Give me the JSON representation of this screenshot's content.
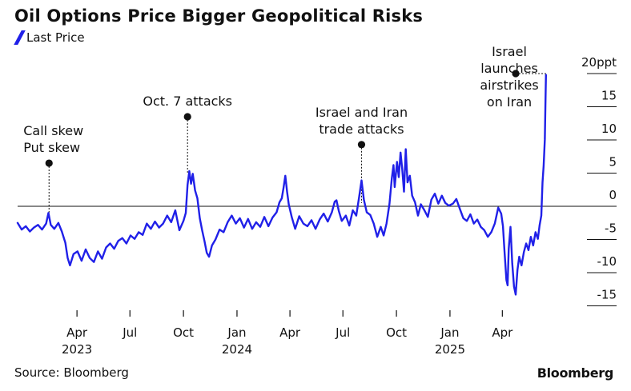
{
  "title": "Oil Options Price Bigger Geopolitical Risks",
  "legend": {
    "label": "Last Price"
  },
  "colors": {
    "series": "#2020e8",
    "text": "#111111",
    "zero_line": "#111111"
  },
  "source": "Source: Bloomberg",
  "brand": "Bloomberg",
  "chart_data": {
    "type": "line",
    "title": "Oil Options Price Bigger Geopolitical Risks",
    "xlabel": "",
    "ylabel": "",
    "ylim": [
      -17,
      22
    ],
    "y_ticks": [
      {
        "value": 20,
        "label": "20ppt"
      },
      {
        "value": 15,
        "label": "15"
      },
      {
        "value": 10,
        "label": "10"
      },
      {
        "value": 5,
        "label": "5"
      },
      {
        "value": 0,
        "label": "0"
      },
      {
        "value": -5,
        "label": "-5"
      },
      {
        "value": -10,
        "label": "-10"
      },
      {
        "value": -15,
        "label": "-15"
      }
    ],
    "x_ticks": [
      {
        "date": "2023-04-01",
        "label": "Apr",
        "year": "2023"
      },
      {
        "date": "2023-07-01",
        "label": "Jul",
        "year": ""
      },
      {
        "date": "2023-10-01",
        "label": "Oct",
        "year": ""
      },
      {
        "date": "2024-01-01",
        "label": "Jan",
        "year": "2024"
      },
      {
        "date": "2024-04-01",
        "label": "Apr",
        "year": ""
      },
      {
        "date": "2024-07-01",
        "label": "Jul",
        "year": ""
      },
      {
        "date": "2024-10-01",
        "label": "Oct",
        "year": ""
      },
      {
        "date": "2025-01-01",
        "label": "Jan",
        "year": "2025"
      },
      {
        "date": "2025-04-01",
        "label": "Apr",
        "year": ""
      }
    ],
    "x_range": [
      "2022-12-20",
      "2025-07-10"
    ],
    "grid": false,
    "legend_position": "top-left",
    "series": [
      {
        "name": "Last Price",
        "color": "#2020e8",
        "points": [
          [
            "2022-12-20",
            -2.5
          ],
          [
            "2022-12-27",
            -3.5
          ],
          [
            "2023-01-03",
            -3.0
          ],
          [
            "2023-01-10",
            -3.8
          ],
          [
            "2023-01-17",
            -3.2
          ],
          [
            "2023-01-24",
            -2.8
          ],
          [
            "2023-01-31",
            -3.5
          ],
          [
            "2023-02-07",
            -2.6
          ],
          [
            "2023-02-11",
            -1.0
          ],
          [
            "2023-02-15",
            -2.8
          ],
          [
            "2023-02-21",
            -3.4
          ],
          [
            "2023-02-28",
            -2.5
          ],
          [
            "2023-03-06",
            -3.8
          ],
          [
            "2023-03-12",
            -5.5
          ],
          [
            "2023-03-16",
            -7.8
          ],
          [
            "2023-03-20",
            -8.9
          ],
          [
            "2023-03-26",
            -7.2
          ],
          [
            "2023-04-02",
            -6.8
          ],
          [
            "2023-04-09",
            -8.2
          ],
          [
            "2023-04-16",
            -6.5
          ],
          [
            "2023-04-23",
            -7.8
          ],
          [
            "2023-04-30",
            -8.4
          ],
          [
            "2023-05-07",
            -6.8
          ],
          [
            "2023-05-14",
            -7.9
          ],
          [
            "2023-05-21",
            -6.2
          ],
          [
            "2023-05-28",
            -5.6
          ],
          [
            "2023-06-04",
            -6.4
          ],
          [
            "2023-06-11",
            -5.2
          ],
          [
            "2023-06-18",
            -4.8
          ],
          [
            "2023-06-25",
            -5.6
          ],
          [
            "2023-07-02",
            -4.4
          ],
          [
            "2023-07-09",
            -4.9
          ],
          [
            "2023-07-16",
            -3.9
          ],
          [
            "2023-07-23",
            -4.3
          ],
          [
            "2023-07-30",
            -2.6
          ],
          [
            "2023-08-06",
            -3.4
          ],
          [
            "2023-08-13",
            -2.3
          ],
          [
            "2023-08-20",
            -3.2
          ],
          [
            "2023-08-27",
            -2.6
          ],
          [
            "2023-09-03",
            -1.4
          ],
          [
            "2023-09-10",
            -2.4
          ],
          [
            "2023-09-17",
            -0.6
          ],
          [
            "2023-09-24",
            -3.6
          ],
          [
            "2023-10-01",
            -2.2
          ],
          [
            "2023-10-05",
            -1.0
          ],
          [
            "2023-10-08",
            3.2
          ],
          [
            "2023-10-11",
            5.3
          ],
          [
            "2023-10-14",
            3.4
          ],
          [
            "2023-10-17",
            4.9
          ],
          [
            "2023-10-21",
            2.4
          ],
          [
            "2023-10-25",
            1.2
          ],
          [
            "2023-10-29",
            -1.8
          ],
          [
            "2023-11-02",
            -3.6
          ],
          [
            "2023-11-06",
            -5.2
          ],
          [
            "2023-11-10",
            -7.0
          ],
          [
            "2023-11-14",
            -7.6
          ],
          [
            "2023-11-19",
            -5.9
          ],
          [
            "2023-11-25",
            -5.0
          ],
          [
            "2023-12-02",
            -3.5
          ],
          [
            "2023-12-09",
            -3.9
          ],
          [
            "2023-12-16",
            -2.4
          ],
          [
            "2023-12-23",
            -1.4
          ],
          [
            "2023-12-30",
            -2.6
          ],
          [
            "2024-01-06",
            -1.8
          ],
          [
            "2024-01-13",
            -3.2
          ],
          [
            "2024-01-20",
            -1.9
          ],
          [
            "2024-01-27",
            -3.4
          ],
          [
            "2024-02-03",
            -2.4
          ],
          [
            "2024-02-10",
            -3.1
          ],
          [
            "2024-02-17",
            -1.6
          ],
          [
            "2024-02-24",
            -3.0
          ],
          [
            "2024-03-02",
            -1.7
          ],
          [
            "2024-03-09",
            -0.9
          ],
          [
            "2024-03-14",
            0.6
          ],
          [
            "2024-03-18",
            1.2
          ],
          [
            "2024-03-21",
            2.8
          ],
          [
            "2024-03-24",
            4.6
          ],
          [
            "2024-03-27",
            2.2
          ],
          [
            "2024-03-30",
            0.3
          ],
          [
            "2024-04-04",
            -1.6
          ],
          [
            "2024-04-10",
            -3.4
          ],
          [
            "2024-04-17",
            -1.5
          ],
          [
            "2024-04-24",
            -2.6
          ],
          [
            "2024-05-01",
            -3.0
          ],
          [
            "2024-05-08",
            -2.1
          ],
          [
            "2024-05-15",
            -3.4
          ],
          [
            "2024-05-22",
            -2.0
          ],
          [
            "2024-05-29",
            -1.1
          ],
          [
            "2024-06-05",
            -2.3
          ],
          [
            "2024-06-12",
            -0.9
          ],
          [
            "2024-06-17",
            0.7
          ],
          [
            "2024-06-20",
            0.9
          ],
          [
            "2024-06-24",
            -0.7
          ],
          [
            "2024-06-29",
            -2.2
          ],
          [
            "2024-07-06",
            -1.4
          ],
          [
            "2024-07-12",
            -2.9
          ],
          [
            "2024-07-18",
            -0.6
          ],
          [
            "2024-07-24",
            -1.4
          ],
          [
            "2024-07-29",
            1.5
          ],
          [
            "2024-08-02",
            3.9
          ],
          [
            "2024-08-06",
            1.0
          ],
          [
            "2024-08-11",
            -0.9
          ],
          [
            "2024-08-17",
            -1.3
          ],
          [
            "2024-08-23",
            -2.6
          ],
          [
            "2024-08-29",
            -4.6
          ],
          [
            "2024-09-04",
            -3.1
          ],
          [
            "2024-09-09",
            -4.4
          ],
          [
            "2024-09-14",
            -2.6
          ],
          [
            "2024-09-19",
            0.4
          ],
          [
            "2024-09-23",
            4.2
          ],
          [
            "2024-09-26",
            6.2
          ],
          [
            "2024-09-28",
            2.9
          ],
          [
            "2024-10-02",
            6.7
          ],
          [
            "2024-10-05",
            4.4
          ],
          [
            "2024-10-08",
            8.1
          ],
          [
            "2024-10-11",
            5.6
          ],
          [
            "2024-10-14",
            2.2
          ],
          [
            "2024-10-17",
            8.6
          ],
          [
            "2024-10-20",
            3.6
          ],
          [
            "2024-10-24",
            4.6
          ],
          [
            "2024-10-28",
            1.6
          ],
          [
            "2024-11-02",
            0.6
          ],
          [
            "2024-11-07",
            -1.4
          ],
          [
            "2024-11-12",
            0.3
          ],
          [
            "2024-11-18",
            -0.6
          ],
          [
            "2024-11-24",
            -1.6
          ],
          [
            "2024-11-30",
            1.0
          ],
          [
            "2024-12-06",
            1.9
          ],
          [
            "2024-12-12",
            0.4
          ],
          [
            "2024-12-18",
            1.6
          ],
          [
            "2024-12-24",
            0.5
          ],
          [
            "2024-12-30",
            0.1
          ],
          [
            "2025-01-06",
            0.4
          ],
          [
            "2025-01-12",
            1.1
          ],
          [
            "2025-01-18",
            -0.4
          ],
          [
            "2025-01-24",
            -1.8
          ],
          [
            "2025-01-30",
            -2.2
          ],
          [
            "2025-02-05",
            -1.2
          ],
          [
            "2025-02-11",
            -2.6
          ],
          [
            "2025-02-17",
            -2.0
          ],
          [
            "2025-02-23",
            -3.1
          ],
          [
            "2025-03-01",
            -3.6
          ],
          [
            "2025-03-07",
            -4.6
          ],
          [
            "2025-03-13",
            -3.9
          ],
          [
            "2025-03-19",
            -2.6
          ],
          [
            "2025-03-25",
            -0.2
          ],
          [
            "2025-03-30",
            -1.1
          ],
          [
            "2025-04-02",
            -3.0
          ],
          [
            "2025-04-05",
            -7.1
          ],
          [
            "2025-04-08",
            -11.1
          ],
          [
            "2025-04-10",
            -11.9
          ],
          [
            "2025-04-12",
            -6.4
          ],
          [
            "2025-04-15",
            -3.1
          ],
          [
            "2025-04-18",
            -8.6
          ],
          [
            "2025-04-21",
            -12.1
          ],
          [
            "2025-04-24",
            -13.3
          ],
          [
            "2025-04-27",
            -9.6
          ],
          [
            "2025-04-30",
            -7.6
          ],
          [
            "2025-05-04",
            -8.9
          ],
          [
            "2025-05-08",
            -6.9
          ],
          [
            "2025-05-12",
            -5.6
          ],
          [
            "2025-05-16",
            -6.6
          ],
          [
            "2025-05-20",
            -4.6
          ],
          [
            "2025-05-24",
            -5.9
          ],
          [
            "2025-05-28",
            -3.9
          ],
          [
            "2025-06-01",
            -4.9
          ],
          [
            "2025-06-04",
            -2.9
          ],
          [
            "2025-06-07",
            -1.4
          ],
          [
            "2025-06-09",
            3.6
          ],
          [
            "2025-06-11",
            6.1
          ],
          [
            "2025-06-13",
            10.1
          ],
          [
            "2025-06-14",
            15.1
          ],
          [
            "2025-06-15",
            19.8
          ]
        ]
      }
    ],
    "annotations": [
      {
        "date": "2023-02-12",
        "value": 6.5,
        "line_end": -1.0,
        "label_lines": [
          "Call skew",
          "Put skew"
        ],
        "align": "left"
      },
      {
        "date": "2023-10-08",
        "value": 13.5,
        "line_end": 5.0,
        "label_lines": [
          "Oct. 7 attacks"
        ],
        "align": "center"
      },
      {
        "date": "2024-08-02",
        "value": 9.3,
        "line_end": 0.5,
        "label_lines": [
          "Israel and Iran",
          "trade attacks"
        ],
        "align": "center"
      },
      {
        "date": "2025-04-24",
        "value": 20.0,
        "line_end": 20.0,
        "label_lines": [
          "Israel",
          "launches",
          "airstrikes",
          "on Iran"
        ],
        "align": "center",
        "horizontal_to": "2025-06-15"
      }
    ]
  }
}
